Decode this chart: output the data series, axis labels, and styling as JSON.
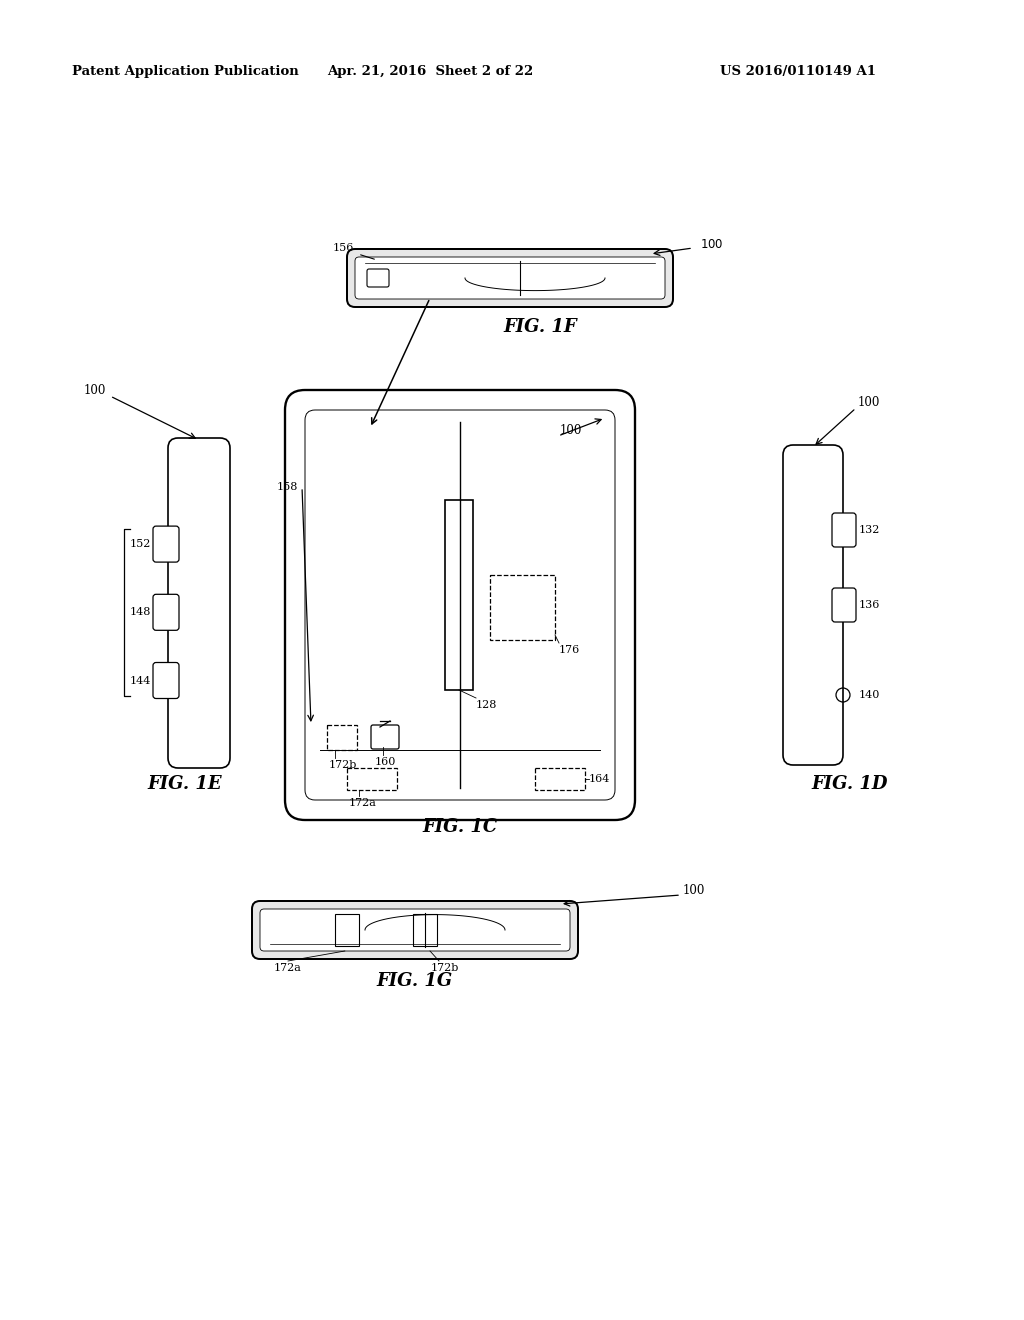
{
  "bg_color": "#ffffff",
  "line_color": "#000000",
  "header_left": "Patent Application Publication",
  "header_center": "Apr. 21, 2016  Sheet 2 of 22",
  "header_right": "US 2016/0110149 A1",
  "fig_labels": {
    "fig1f": "FIG. 1F",
    "fig1c": "FIG. 1C",
    "fig1e": "FIG. 1E",
    "fig1d": "FIG. 1D",
    "fig1g": "FIG. 1G"
  }
}
